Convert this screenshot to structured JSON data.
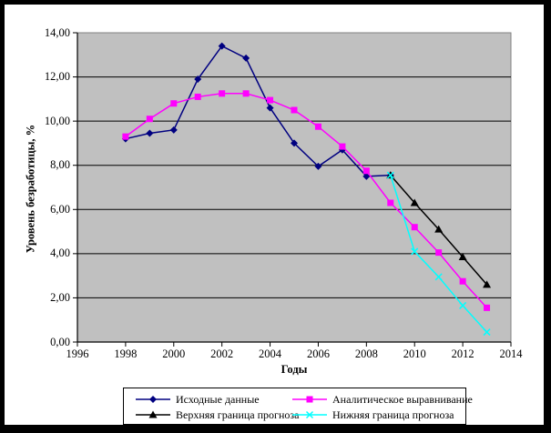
{
  "chart_data": {
    "type": "line",
    "title": "",
    "xlabel": "Годы",
    "ylabel": "Уровень безработицы, %",
    "xlim": [
      1996,
      2014
    ],
    "ylim": [
      0,
      14
    ],
    "grid": "horizontal-only",
    "plot_bg_color": "#C0C0C0",
    "plot_border_color": "#808080",
    "gridline_color": "#000000",
    "legend_position": "bottom",
    "x_ticks": {
      "values": [
        1996,
        1998,
        2000,
        2002,
        2004,
        2006,
        2008,
        2010,
        2012,
        2014
      ],
      "labels": [
        "1996",
        "1998",
        "2000",
        "2002",
        "2004",
        "2006",
        "2008",
        "2010",
        "2012",
        "2014"
      ]
    },
    "y_ticks": {
      "values": [
        0,
        2,
        4,
        6,
        8,
        10,
        12,
        14
      ],
      "labels": [
        "0,00",
        "2,00",
        "4,00",
        "6,00",
        "8,00",
        "10,00",
        "12,00",
        "14,00"
      ]
    },
    "series": [
      {
        "name": "Исходные данные",
        "color": "#000080",
        "marker": "diamond",
        "x": [
          1998,
          1999,
          2000,
          2001,
          2002,
          2003,
          2004,
          2005,
          2006,
          2007,
          2008,
          2009
        ],
        "values": [
          9.2,
          9.45,
          9.6,
          11.9,
          13.4,
          12.85,
          10.6,
          9.0,
          7.95,
          8.7,
          7.5,
          7.55
        ]
      },
      {
        "name": "Аналитическое выравнивание",
        "color": "#FF00FF",
        "marker": "square",
        "x": [
          1998,
          1999,
          2000,
          2001,
          2002,
          2003,
          2004,
          2005,
          2006,
          2007,
          2008,
          2009,
          2010,
          2011,
          2012,
          2013
        ],
        "values": [
          9.3,
          10.1,
          10.8,
          11.1,
          11.25,
          11.25,
          10.95,
          10.5,
          9.75,
          8.85,
          7.75,
          6.3,
          5.2,
          4.05,
          2.75,
          1.55
        ]
      },
      {
        "name": "Верхняя граница прогноза",
        "color": "#000000",
        "marker": "triangle",
        "x": [
          2009,
          2010,
          2011,
          2012,
          2013
        ],
        "values": [
          7.55,
          6.3,
          5.1,
          3.85,
          2.6
        ]
      },
      {
        "name": "Нижняя граница прогноза",
        "color": "#00FFFF",
        "marker": "x",
        "x": [
          2009,
          2010,
          2011,
          2012,
          2013
        ],
        "values": [
          7.55,
          4.1,
          2.95,
          1.65,
          0.45
        ]
      }
    ]
  }
}
